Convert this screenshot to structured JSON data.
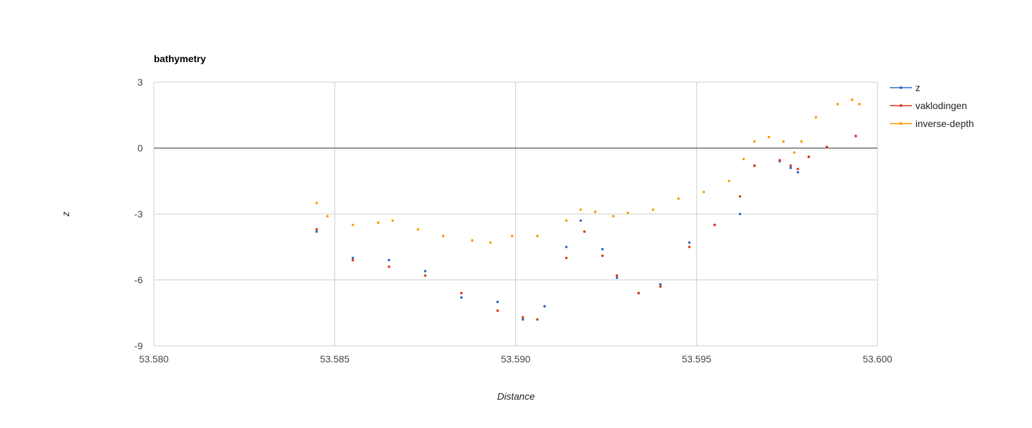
{
  "chart_data": {
    "type": "scatter",
    "title": "bathymetry",
    "xlabel": "Distance",
    "ylabel": "z",
    "xlim": [
      53.58,
      53.6
    ],
    "ylim": [
      -9,
      3
    ],
    "x_ticks": [
      "53.580",
      "53.585",
      "53.590",
      "53.595",
      "53.600"
    ],
    "y_ticks": [
      "3",
      "0",
      "-3",
      "-6",
      "-9"
    ],
    "grid": true,
    "legend_position": "right",
    "series": [
      {
        "name": "z",
        "color": "#3366cc",
        "x": [
          53.5845,
          53.5855,
          53.5865,
          53.5875,
          53.5885,
          53.5895,
          53.5902,
          53.5908,
          53.5914,
          53.5918,
          53.5924,
          53.5928,
          53.5934,
          53.594,
          53.5948,
          53.5955,
          53.5962,
          53.5966,
          53.5973,
          53.5976,
          53.5978,
          53.5981,
          53.5986,
          53.5994
        ],
        "y": [
          -3.8,
          -5.0,
          -5.1,
          -5.6,
          -6.8,
          -7.0,
          -7.8,
          -7.2,
          -4.5,
          -3.3,
          -4.6,
          -5.9,
          -6.6,
          -6.2,
          -4.3,
          -3.5,
          -3.0,
          -0.8,
          -0.6,
          -0.9,
          -1.1,
          -0.4,
          0.05,
          0.55
        ]
      },
      {
        "name": "vaklodingen",
        "color": "#dc3912",
        "x": [
          53.5845,
          53.5855,
          53.5865,
          53.5875,
          53.5885,
          53.5895,
          53.5902,
          53.5906,
          53.5914,
          53.5919,
          53.5924,
          53.5928,
          53.5934,
          53.594,
          53.5948,
          53.5955,
          53.5962,
          53.5966,
          53.5973,
          53.5976,
          53.5978,
          53.5981,
          53.5986,
          53.5994
        ],
        "y": [
          -3.7,
          -5.1,
          -5.4,
          -5.8,
          -6.6,
          -7.4,
          -7.7,
          -7.8,
          -5.0,
          -3.8,
          -4.9,
          -5.8,
          -6.6,
          -6.3,
          -4.5,
          -3.5,
          -2.2,
          -0.8,
          -0.55,
          -0.8,
          -0.95,
          -0.4,
          0.05,
          0.55
        ]
      },
      {
        "name": "inverse-depth",
        "color": "#ff9900",
        "x": [
          53.5845,
          53.5848,
          53.5855,
          53.5862,
          53.5866,
          53.5873,
          53.588,
          53.5888,
          53.5893,
          53.5899,
          53.5906,
          53.5914,
          53.5918,
          53.5922,
          53.5927,
          53.5931,
          53.5938,
          53.5945,
          53.5952,
          53.5959,
          53.5963,
          53.5966,
          53.597,
          53.5974,
          53.5977,
          53.5979,
          53.5983,
          53.5989,
          53.5993,
          53.5995
        ],
        "y": [
          -2.5,
          -3.1,
          -3.5,
          -3.4,
          -3.3,
          -3.7,
          -4.0,
          -4.2,
          -4.3,
          -4.0,
          -4.0,
          -3.3,
          -2.8,
          -2.9,
          -3.1,
          -2.95,
          -2.8,
          -2.3,
          -2.0,
          -1.5,
          -0.5,
          0.3,
          0.5,
          0.3,
          -0.2,
          0.3,
          1.4,
          2.0,
          2.2,
          2.0
        ]
      }
    ]
  }
}
